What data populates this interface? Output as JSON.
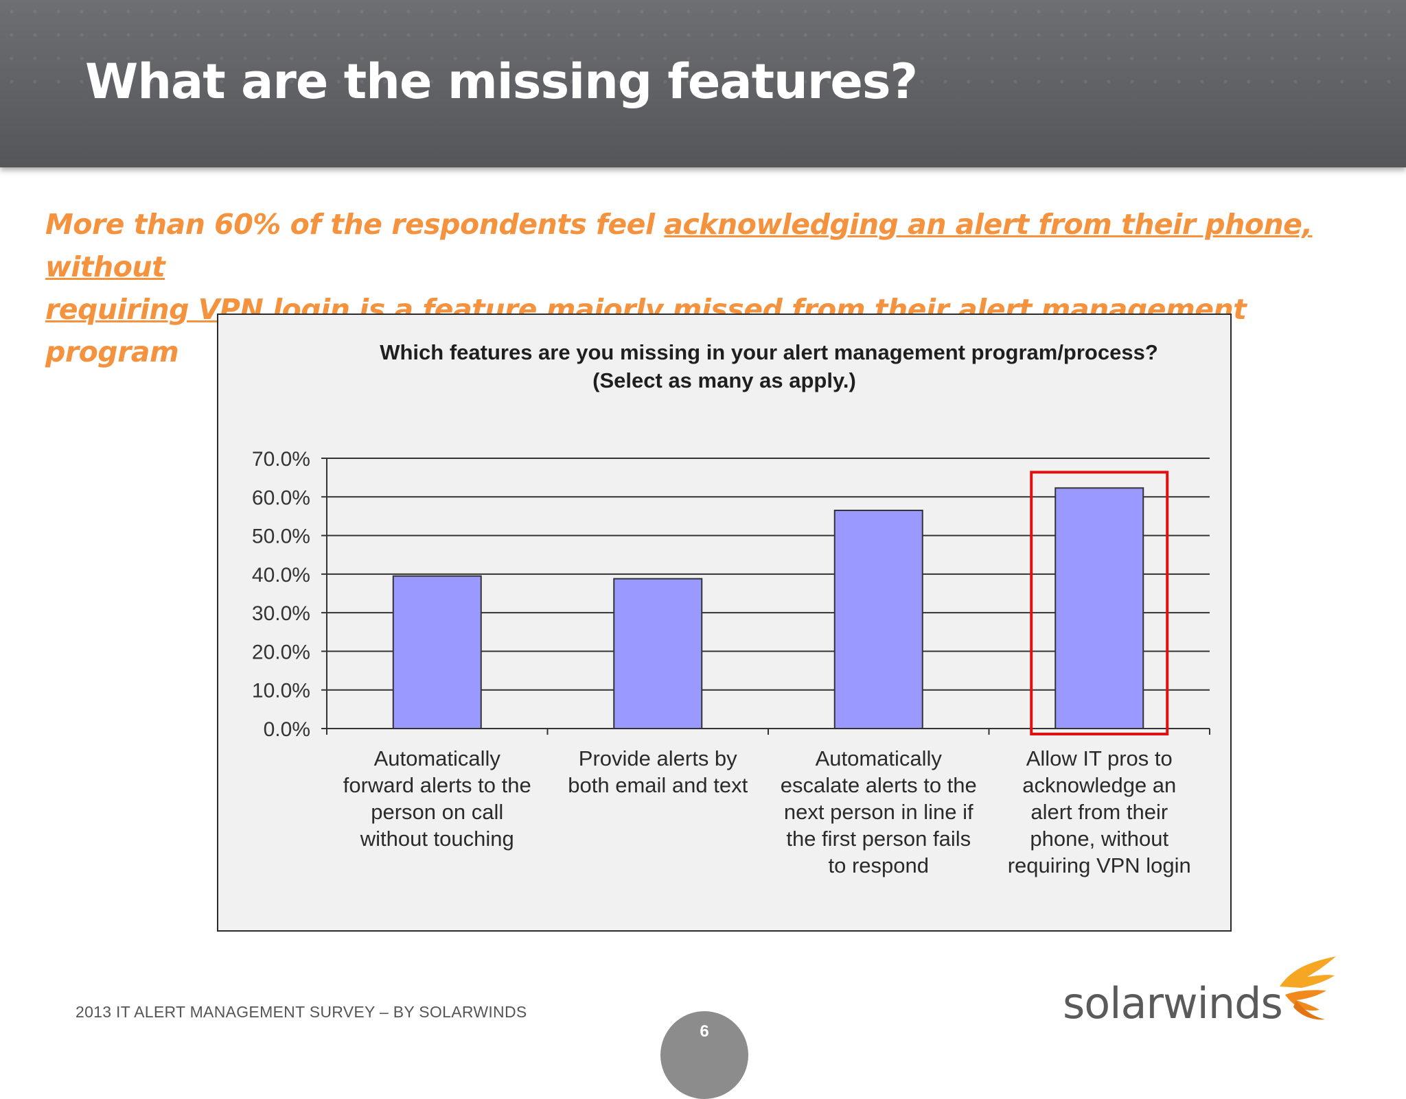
{
  "slide": {
    "title": "What are the missing features?",
    "subtitle": {
      "part1": "More than 60% of the respondents feel ",
      "underlined1": "acknowledging an alert from their phone, without",
      "underlined2": "requiring VPN login ",
      "part2": "is a feature majorly missed from their alert management program"
    },
    "footer": "2013 IT ALERT MANAGEMENT SURVEY – BY SOLARWINDS",
    "page_number": "6",
    "logo_text": "solarwinds",
    "accent_color": "#f5923e",
    "header_color": "#606165"
  },
  "chart_data": {
    "type": "bar",
    "title_line1": "Which features are you missing in your alert management program/process?",
    "title_line2": "(Select as many as apply.)",
    "categories": [
      [
        "Automatically",
        "forward alerts to the",
        "person on call",
        "without touching"
      ],
      [
        "Provide alerts by",
        "both email and text"
      ],
      [
        "Automatically",
        "escalate alerts to the",
        "next person in line if",
        "the first person fails",
        "to respond"
      ],
      [
        "Allow IT pros to",
        "acknowledge an",
        "alert from their",
        "phone, without",
        "requiring VPN login"
      ]
    ],
    "values": [
      39.5,
      38.8,
      56.5,
      62.3
    ],
    "ylim": [
      0,
      70
    ],
    "yticks": [
      "0.0%",
      "10.0%",
      "20.0%",
      "30.0%",
      "40.0%",
      "50.0%",
      "60.0%",
      "70.0%"
    ],
    "grid": true,
    "bar_color": "#9999ff",
    "highlight_index": 3,
    "highlight_color": "#e01010"
  }
}
